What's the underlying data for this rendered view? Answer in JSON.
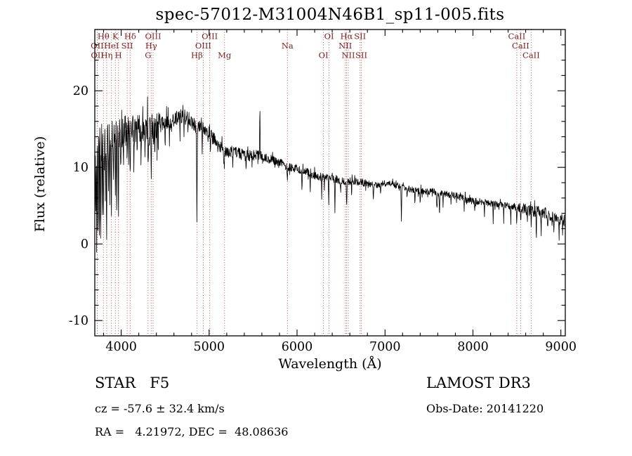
{
  "figure": {
    "footer": {
      "class_label": "STAR   F5",
      "survey": "LAMOST DR3",
      "cz": "cz = -57.6 ± 32.4 km/s",
      "obs_date": "Obs-Date: 20141220",
      "ra_dec": "RA =   4.21972, DEC =  48.08636"
    },
    "colors": {
      "background": "#ffffff",
      "line": "#000000",
      "axis": "#000000",
      "marker_line": "#b35454",
      "marker_label": "#7a1f1f"
    }
  },
  "chart_data": {
    "type": "line",
    "title": "spec-57012-M31004N46B1_sp11-005.fits",
    "xlabel": "Wavelength (Å)",
    "ylabel": "Flux (relative)",
    "xlim": [
      3700,
      9050
    ],
    "ylim": [
      -12,
      28
    ],
    "xticks": [
      4000,
      5000,
      6000,
      7000,
      8000,
      9000
    ],
    "yticks": [
      -10,
      0,
      10,
      20
    ],
    "x_minor_step": 200,
    "y_minor_step": 2,
    "grid": false,
    "legend": false,
    "spectral_lines": [
      {
        "wavelength": 3727,
        "label": "OII",
        "row": 2
      },
      {
        "wavelength": 3729,
        "label": "OII",
        "row": 3
      },
      {
        "wavelength": 3798,
        "label": "Hθ",
        "row": 1
      },
      {
        "wavelength": 3835,
        "label": "Hη",
        "row": 3
      },
      {
        "wavelength": 3889,
        "label": "HeI",
        "row": 2
      },
      {
        "wavelength": 3934,
        "label": "K",
        "row": 1
      },
      {
        "wavelength": 3969,
        "label": "H",
        "row": 3
      },
      {
        "wavelength": 4068,
        "label": "SII",
        "row": 2
      },
      {
        "wavelength": 4102,
        "label": "Hδ",
        "row": 1
      },
      {
        "wavelength": 4305,
        "label": "G",
        "row": 3
      },
      {
        "wavelength": 4341,
        "label": "Hγ",
        "row": 2
      },
      {
        "wavelength": 4363,
        "label": "OIII",
        "row": 1
      },
      {
        "wavelength": 4861,
        "label": "Hβ",
        "row": 3
      },
      {
        "wavelength": 4933,
        "label": "OIII",
        "row": 2
      },
      {
        "wavelength": 5007,
        "label": "OIII",
        "row": 1
      },
      {
        "wavelength": 5175,
        "label": "Mg",
        "row": 3
      },
      {
        "wavelength": 5890,
        "label": "Na",
        "row": 2
      },
      {
        "wavelength": 6300,
        "label": "OI",
        "row": 3
      },
      {
        "wavelength": 6364,
        "label": "OI",
        "row": 1
      },
      {
        "wavelength": 6548,
        "label": "NII",
        "row": 2
      },
      {
        "wavelength": 6563,
        "label": "Hα",
        "row": 1
      },
      {
        "wavelength": 6583,
        "label": "NII",
        "row": 3
      },
      {
        "wavelength": 6716,
        "label": "SII",
        "row": 1
      },
      {
        "wavelength": 6731,
        "label": "SII",
        "row": 3
      },
      {
        "wavelength": 8498,
        "label": "CaII",
        "row": 1
      },
      {
        "wavelength": 8542,
        "label": "CaII",
        "row": 2
      },
      {
        "wavelength": 8662,
        "label": "CaII",
        "row": 3
      }
    ],
    "series": [
      {
        "name": "spectrum",
        "continuum": [
          [
            3700,
            10
          ],
          [
            3720,
            12
          ],
          [
            3740,
            12.5
          ],
          [
            3760,
            13
          ],
          [
            3780,
            13.2
          ],
          [
            3800,
            13.6
          ],
          [
            3850,
            13.8
          ],
          [
            3900,
            14.2
          ],
          [
            3950,
            14.2
          ],
          [
            4000,
            14.6
          ],
          [
            4050,
            14.8
          ],
          [
            4100,
            15.0
          ],
          [
            4150,
            15.2
          ],
          [
            4200,
            15.3
          ],
          [
            4250,
            15.0
          ],
          [
            4300,
            14.7
          ],
          [
            4350,
            15.0
          ],
          [
            4400,
            15.3
          ],
          [
            4450,
            15.6
          ],
          [
            4500,
            15.8
          ],
          [
            4550,
            16.0
          ],
          [
            4600,
            16.3
          ],
          [
            4650,
            16.5
          ],
          [
            4700,
            16.7
          ],
          [
            4750,
            16.5
          ],
          [
            4800,
            16.2
          ],
          [
            4830,
            15.8
          ],
          [
            4861,
            15.0
          ],
          [
            4890,
            15.4
          ],
          [
            4920,
            15.3
          ],
          [
            4950,
            15.0
          ],
          [
            5000,
            14.6
          ],
          [
            5050,
            13.8
          ],
          [
            5100,
            13.0
          ],
          [
            5150,
            12.4
          ],
          [
            5175,
            11.9
          ],
          [
            5200,
            12.0
          ],
          [
            5250,
            12.1
          ],
          [
            5300,
            12.0
          ],
          [
            5350,
            11.8
          ],
          [
            5400,
            11.6
          ],
          [
            5450,
            11.5
          ],
          [
            5500,
            11.6
          ],
          [
            5550,
            11.5
          ],
          [
            5600,
            11.4
          ],
          [
            5650,
            11.2
          ],
          [
            5700,
            11.0
          ],
          [
            5750,
            10.8
          ],
          [
            5800,
            10.6
          ],
          [
            5850,
            10.4
          ],
          [
            5890,
            10.0
          ],
          [
            5950,
            10.0
          ],
          [
            6000,
            9.8
          ],
          [
            6100,
            9.4
          ],
          [
            6200,
            9.0
          ],
          [
            6300,
            8.7
          ],
          [
            6400,
            8.5
          ],
          [
            6500,
            8.3
          ],
          [
            6550,
            8.1
          ],
          [
            6600,
            8.2
          ],
          [
            6700,
            8.1
          ],
          [
            6800,
            7.9
          ],
          [
            6900,
            7.7
          ],
          [
            7000,
            7.9
          ],
          [
            7050,
            8.0
          ],
          [
            7100,
            7.8
          ],
          [
            7200,
            7.4
          ],
          [
            7300,
            7.1
          ],
          [
            7400,
            6.9
          ],
          [
            7500,
            6.8
          ],
          [
            7550,
            6.9
          ],
          [
            7600,
            6.5
          ],
          [
            7650,
            6.6
          ],
          [
            7700,
            6.5
          ],
          [
            7800,
            6.3
          ],
          [
            7900,
            5.9
          ],
          [
            8000,
            5.6
          ],
          [
            8100,
            5.5
          ],
          [
            8200,
            5.3
          ],
          [
            8300,
            5.1
          ],
          [
            8400,
            5.0
          ],
          [
            8500,
            4.7
          ],
          [
            8600,
            4.5
          ],
          [
            8700,
            4.3
          ],
          [
            8800,
            4.1
          ],
          [
            8900,
            3.7
          ],
          [
            8950,
            3.4
          ],
          [
            9000,
            3.2
          ],
          [
            9050,
            3.0
          ]
        ],
        "noise_regions": [
          [
            3700,
            3790,
            3.2
          ],
          [
            3790,
            4450,
            2.1
          ],
          [
            4450,
            4870,
            1.0
          ],
          [
            4870,
            5600,
            0.75
          ],
          [
            5600,
            6300,
            0.55
          ],
          [
            6300,
            6800,
            0.5
          ],
          [
            6800,
            7700,
            0.4
          ],
          [
            7700,
            8500,
            0.45
          ],
          [
            8500,
            9050,
            0.75
          ]
        ],
        "spikes": [
          [
            3712,
            -9,
            3
          ],
          [
            3722,
            -13,
            3
          ],
          [
            3737,
            -15,
            3
          ],
          [
            3752,
            -10,
            3
          ],
          [
            3767,
            -13,
            3
          ],
          [
            3783,
            -8,
            3
          ],
          [
            3798,
            -11,
            4
          ],
          [
            3820,
            -7,
            3
          ],
          [
            3835,
            -12,
            4
          ],
          [
            3856,
            -6,
            3
          ],
          [
            3871,
            -9,
            3
          ],
          [
            3889,
            -10,
            4
          ],
          [
            3912,
            -6,
            3
          ],
          [
            3934,
            -9,
            4
          ],
          [
            3950,
            -12,
            3
          ],
          [
            3969,
            -10,
            4
          ],
          [
            3995,
            -5,
            3
          ],
          [
            4026,
            -6,
            3
          ],
          [
            4068,
            -5,
            3
          ],
          [
            4102,
            -7,
            4
          ],
          [
            4144,
            -4,
            3
          ],
          [
            4180,
            -5,
            3
          ],
          [
            4226,
            -5,
            3
          ],
          [
            4270,
            -4,
            3
          ],
          [
            4308,
            -5,
            4
          ],
          [
            4341,
            -6,
            4
          ],
          [
            4383,
            -4,
            3
          ],
          [
            4420,
            -3,
            3
          ],
          [
            4500,
            -2.5,
            3
          ],
          [
            4550,
            -2,
            3
          ],
          [
            4668,
            -2.5,
            3
          ],
          [
            4713,
            -2,
            3
          ],
          [
            4861,
            -12,
            4
          ],
          [
            4921,
            -3,
            3
          ],
          [
            5015,
            -2.5,
            3
          ],
          [
            5170,
            -2.5,
            4
          ],
          [
            5270,
            -2,
            3
          ],
          [
            5420,
            -2,
            3
          ],
          [
            5577,
            6.8,
            3
          ],
          [
            5890,
            -2.2,
            4
          ],
          [
            6056,
            -3,
            3
          ],
          [
            6150,
            -2.5,
            3
          ],
          [
            6280,
            -2.5,
            3
          ],
          [
            6310,
            -1.5,
            3
          ],
          [
            6360,
            -3.5,
            3
          ],
          [
            6430,
            -4.5,
            3
          ],
          [
            6495,
            -2,
            3
          ],
          [
            6563,
            -3.2,
            4
          ],
          [
            6620,
            -1.5,
            3
          ],
          [
            6867,
            -1.8,
            5
          ],
          [
            6950,
            -1.5,
            3
          ],
          [
            7186,
            -4.2,
            4
          ],
          [
            7250,
            -1.5,
            3
          ],
          [
            7340,
            -2,
            3
          ],
          [
            7400,
            -1.5,
            3
          ],
          [
            7590,
            -1.8,
            6
          ],
          [
            7620,
            -2.8,
            4
          ],
          [
            7660,
            -1.5,
            3
          ],
          [
            7750,
            -1.5,
            3
          ],
          [
            7900,
            -1.5,
            3
          ],
          [
            8020,
            -1.5,
            3
          ],
          [
            8130,
            -2.2,
            3
          ],
          [
            8230,
            -2.2,
            3
          ],
          [
            8350,
            -1.5,
            3
          ],
          [
            8430,
            -2,
            3
          ],
          [
            8498,
            -1.8,
            3
          ],
          [
            8542,
            -2,
            3
          ],
          [
            8620,
            -1.5,
            3
          ],
          [
            8662,
            -2,
            3
          ],
          [
            8720,
            -3.2,
            3
          ],
          [
            8775,
            -4,
            3
          ],
          [
            8850,
            -2.5,
            3
          ],
          [
            8920,
            -2.2,
            3
          ],
          [
            8980,
            -3,
            3
          ],
          [
            9020,
            -2,
            3
          ]
        ]
      }
    ]
  }
}
